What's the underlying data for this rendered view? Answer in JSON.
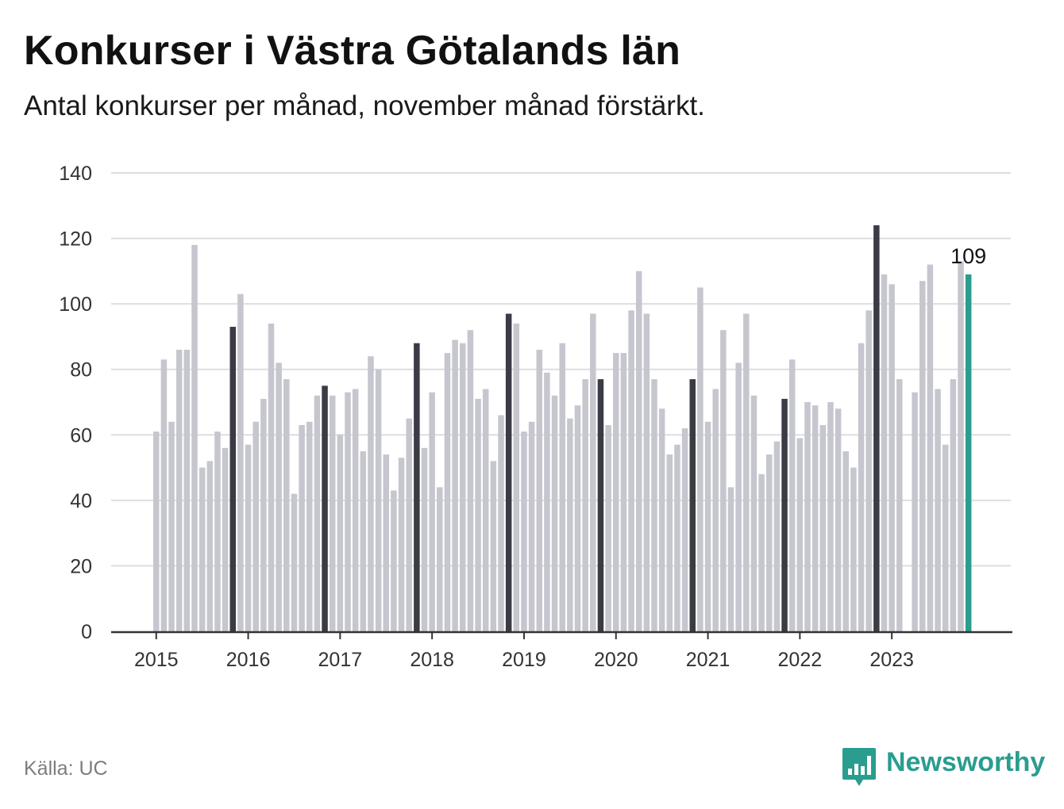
{
  "header": {
    "title": "Konkurser i Västra Götalands län",
    "subtitle": "Antal konkurser per månad, november månad förstärkt."
  },
  "footer": {
    "source": "Källa: UC",
    "brand": "Newsworthy",
    "brand_icon": "bar-chart-speech-bubble-icon"
  },
  "colors": {
    "bar": "#c6c6cf",
    "highlight": "#3b3b45",
    "latest": "#2a9d8f",
    "grid": "#dedee2",
    "axis": "#333333",
    "brand": "#2a9d8f"
  },
  "chart_data": {
    "type": "bar",
    "title": "Konkurser i Västra Götalands län",
    "subtitle": "Antal konkurser per månad, november månad förstärkt.",
    "xlabel": "",
    "ylabel": "",
    "ylim": [
      0,
      140
    ],
    "yticks": [
      0,
      20,
      40,
      60,
      80,
      100,
      120,
      140
    ],
    "grid": true,
    "start_month": "2015-01",
    "highlight_month": "november",
    "x_tick_labels": [
      "2015",
      "2016",
      "2017",
      "2018",
      "2019",
      "2020",
      "2021",
      "2022",
      "2023"
    ],
    "latest_label": "109",
    "values": [
      61,
      83,
      64,
      86,
      86,
      118,
      50,
      52,
      61,
      56,
      93,
      103,
      57,
      64,
      71,
      94,
      82,
      77,
      42,
      63,
      64,
      72,
      75,
      72,
      60,
      73,
      74,
      55,
      84,
      80,
      54,
      43,
      53,
      65,
      88,
      56,
      73,
      44,
      85,
      89,
      88,
      92,
      71,
      74,
      52,
      66,
      97,
      94,
      61,
      64,
      86,
      79,
      72,
      88,
      65,
      69,
      77,
      97,
      77,
      63,
      85,
      85,
      98,
      110,
      97,
      77,
      68,
      54,
      57,
      62,
      77,
      105,
      64,
      74,
      92,
      44,
      82,
      97,
      72,
      48,
      54,
      58,
      71,
      83,
      59,
      70,
      69,
      63,
      70,
      68,
      55,
      50,
      88,
      98,
      124,
      109,
      106,
      77,
      0,
      73,
      107,
      112,
      74,
      57,
      77,
      113,
      109
    ]
  }
}
